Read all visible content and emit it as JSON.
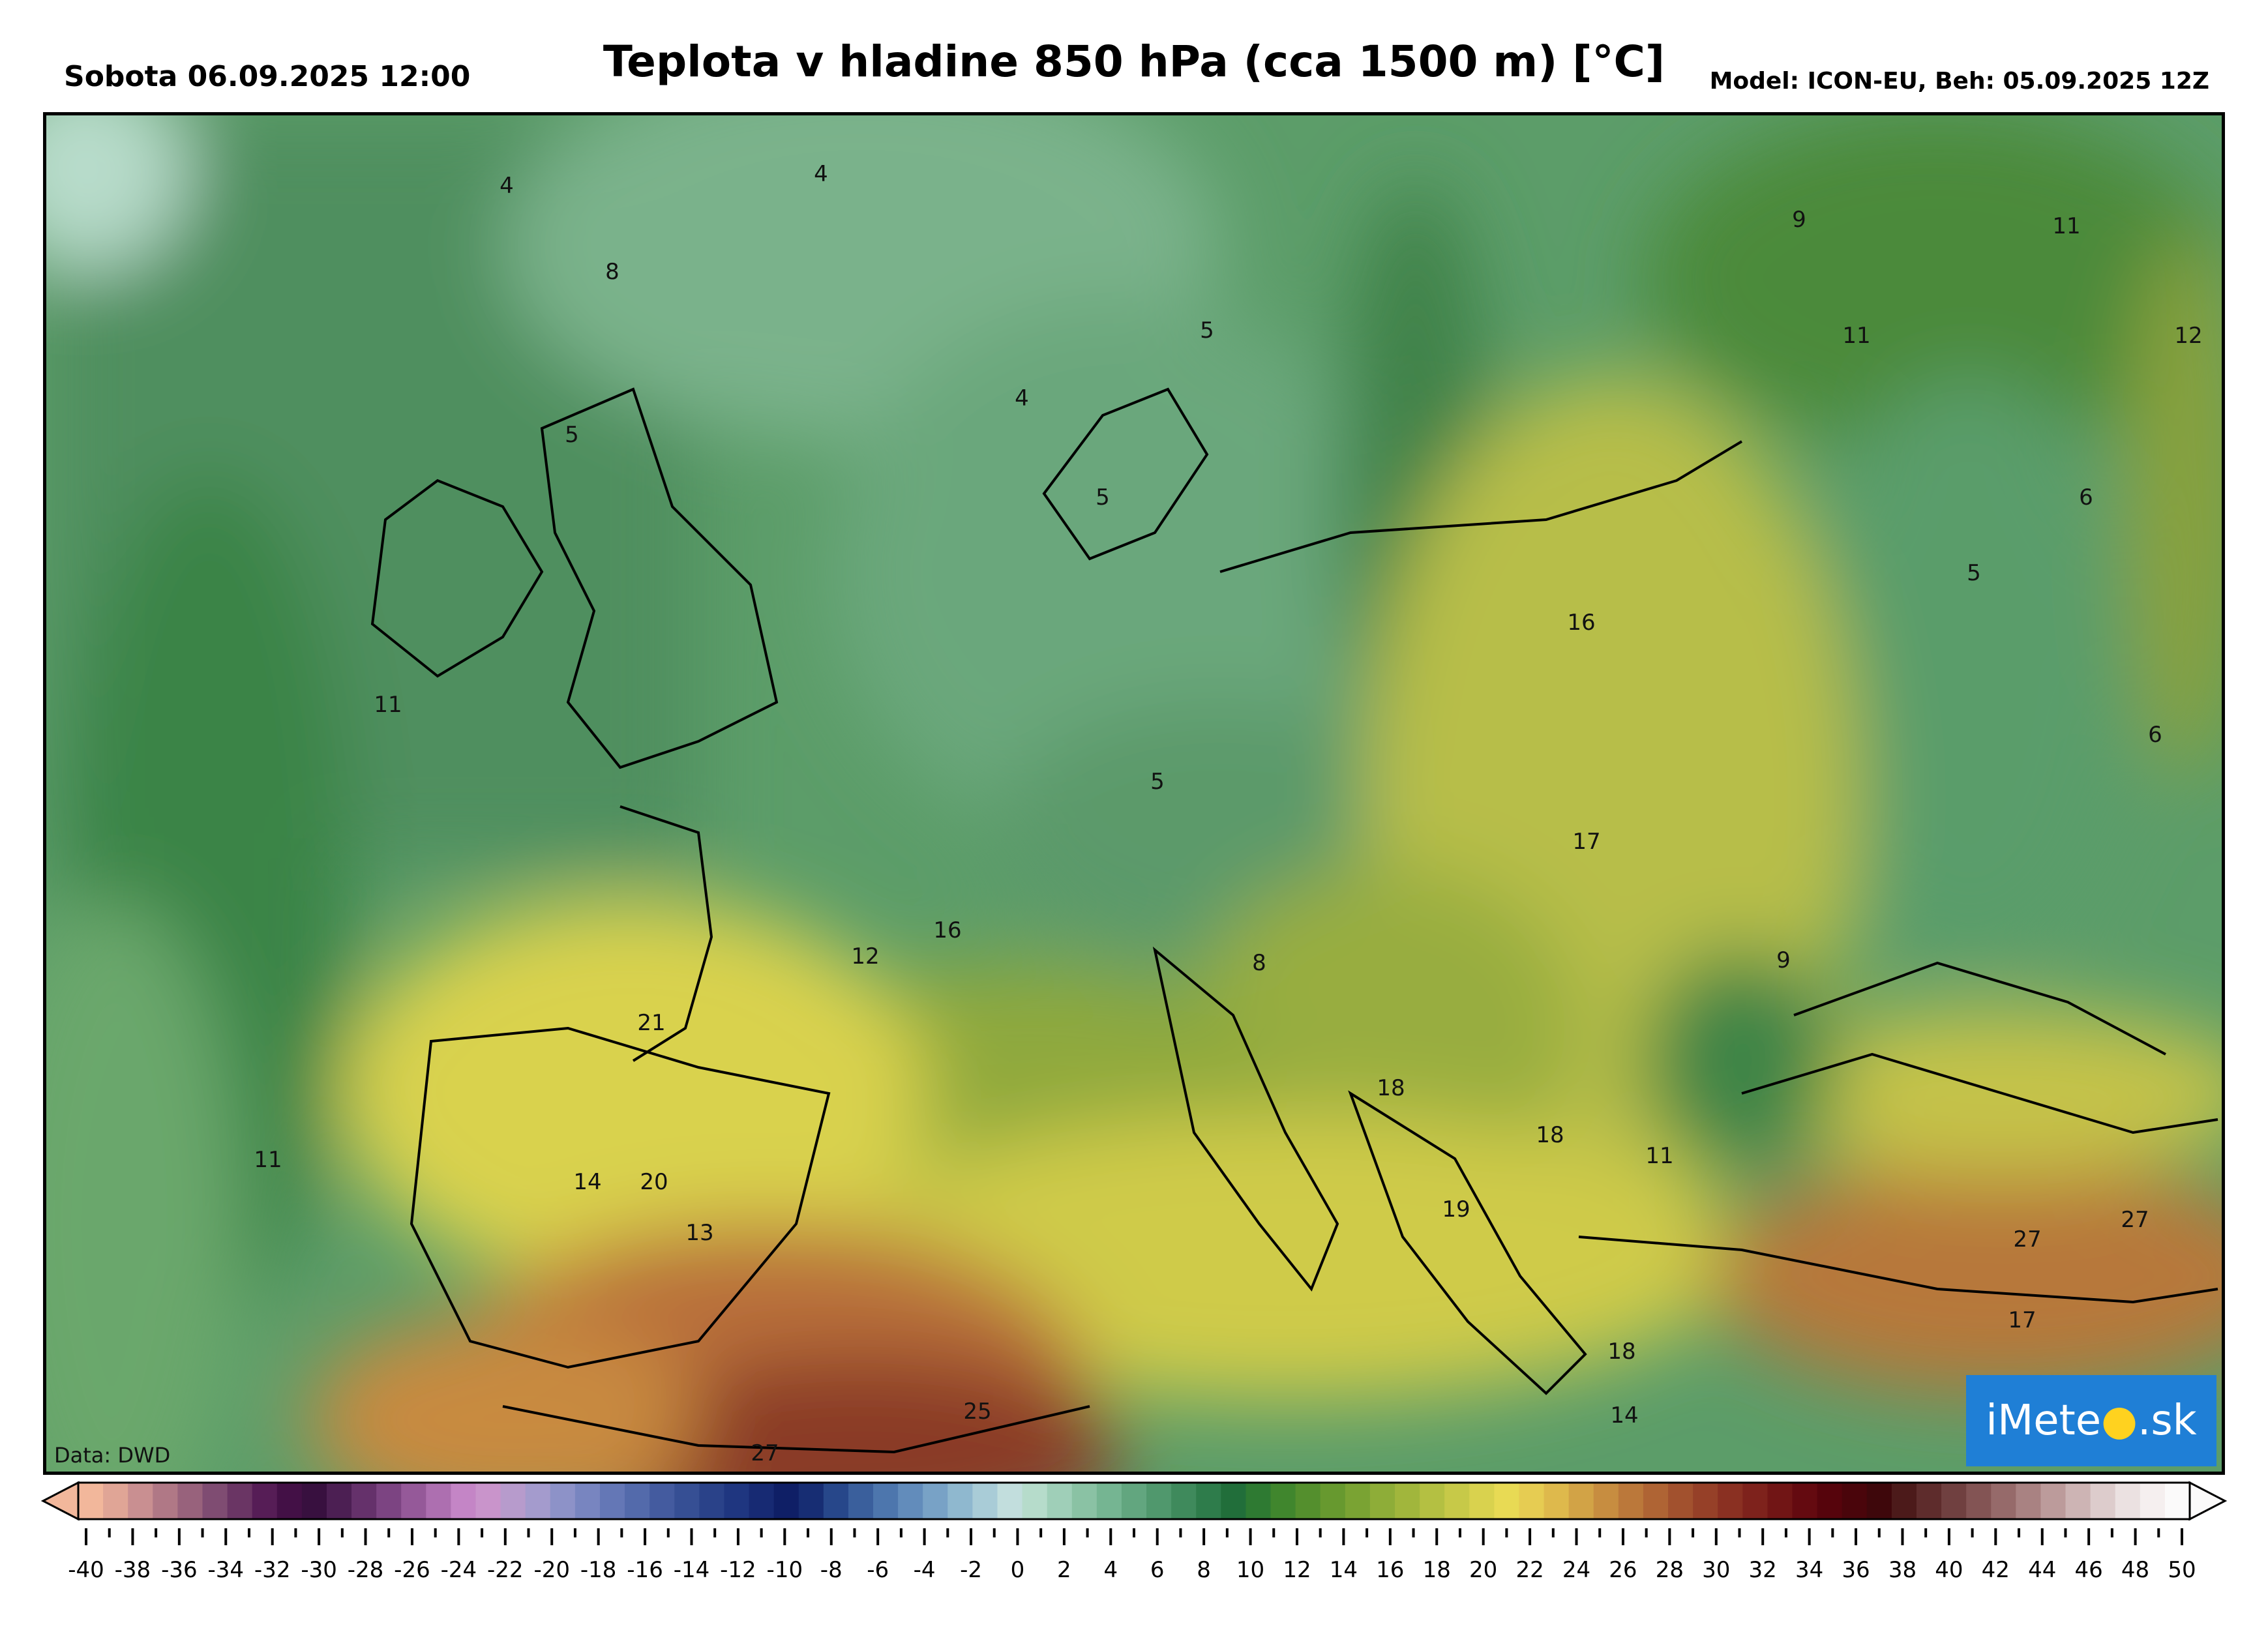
{
  "header": {
    "date_text": "Sobota 06.09.2025 12:00",
    "title": "Teplota v hladine 850 hPa (cca 1500 m) [°C]",
    "model_text": "Model: ICON-EU, Beh: 05.09.2025 12Z"
  },
  "map": {
    "source_text": "Data: DWD",
    "logo_text": "iMeteo.sk",
    "labels": [
      {
        "v": "4"
      },
      {
        "v": "4"
      },
      {
        "v": "8"
      },
      {
        "v": "5"
      },
      {
        "v": "4"
      },
      {
        "v": "5"
      },
      {
        "v": "5"
      },
      {
        "v": "9"
      },
      {
        "v": "11"
      },
      {
        "v": "11"
      },
      {
        "v": "12"
      },
      {
        "v": "6"
      },
      {
        "v": "5"
      },
      {
        "v": "6"
      },
      {
        "v": "16"
      },
      {
        "v": "11"
      },
      {
        "v": "5"
      },
      {
        "v": "17"
      },
      {
        "v": "16"
      },
      {
        "v": "12"
      },
      {
        "v": "8"
      },
      {
        "v": "9"
      },
      {
        "v": "21"
      },
      {
        "v": "11"
      },
      {
        "v": "14"
      },
      {
        "v": "20"
      },
      {
        "v": "13"
      },
      {
        "v": "18"
      },
      {
        "v": "18"
      },
      {
        "v": "11"
      },
      {
        "v": "19"
      },
      {
        "v": "27"
      },
      {
        "v": "27"
      },
      {
        "v": "17"
      },
      {
        "v": "18"
      },
      {
        "v": "14"
      },
      {
        "v": "25"
      },
      {
        "v": "27"
      }
    ]
  },
  "colorbar": {
    "ticks": [
      "-40",
      "-38",
      "-36",
      "-34",
      "-32",
      "-30",
      "-28",
      "-26",
      "-24",
      "-22",
      "-20",
      "-18",
      "-16",
      "-14",
      "-12",
      "-10",
      "-8",
      "-6",
      "-4",
      "-2",
      "0",
      "2",
      "4",
      "6",
      "8",
      "10",
      "12",
      "14",
      "16",
      "18",
      "20",
      "22",
      "24",
      "26",
      "28",
      "30",
      "32",
      "34",
      "36",
      "38",
      "40",
      "42",
      "44",
      "46",
      "48",
      "50"
    ],
    "colors": [
      "#f2b79b",
      "#e0a596",
      "#c98f91",
      "#b07886",
      "#98627c",
      "#7f4c72",
      "#6a3564",
      "#561d56",
      "#431046",
      "#38103f",
      "#4c1f53",
      "#65316b",
      "#7c4482",
      "#955999",
      "#ad6fb0",
      "#c485c6",
      "#c994cb",
      "#b79bcc",
      "#a49bcd",
      "#8d92c8",
      "#7885c0",
      "#6477b6",
      "#536aab",
      "#445b9f",
      "#364f94",
      "#2a4289",
      "#1f3680",
      "#172a73",
      "#0f1f66",
      "#172d73",
      "#27478a",
      "#3a5f9c",
      "#4d76ad",
      "#628cbb",
      "#78a2c6",
      "#8fb8cf",
      "#a9ccd7",
      "#c2dedd",
      "#b6dccb",
      "#9fcfb8",
      "#8ac2a4",
      "#75b592",
      "#62a67f",
      "#50986d",
      "#3f8a5c",
      "#2e7c4b",
      "#216e3a",
      "#2e7a32",
      "#40862d",
      "#548f2d",
      "#67992f",
      "#7aa333",
      "#8ead38",
      "#a1b63c",
      "#b4c042",
      "#c7c948",
      "#d9d24e",
      "#e8da54",
      "#e6cc52",
      "#deb94c",
      "#d2a346",
      "#c78d40",
      "#bb783a",
      "#af6434",
      "#a2512e",
      "#964028",
      "#8a3022",
      "#7e221c",
      "#711515",
      "#640a10",
      "#56040c",
      "#4a050b",
      "#3e070b",
      "#4c1a1a",
      "#5e2c2c",
      "#704040",
      "#835454",
      "#966a6a",
      "#a98282",
      "#bc9b9b",
      "#cdb4b4",
      "#ddcccc",
      "#ebe1e1",
      "#f5efef",
      "#fbfafa"
    ]
  }
}
